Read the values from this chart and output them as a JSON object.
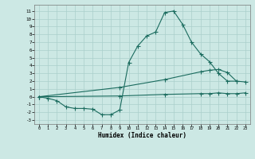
{
  "xlabel": "Humidex (Indice chaleur)",
  "xlim": [
    -0.5,
    23.5
  ],
  "ylim": [
    -3.5,
    11.8
  ],
  "xticks": [
    0,
    1,
    2,
    3,
    4,
    5,
    6,
    7,
    8,
    9,
    10,
    11,
    12,
    13,
    14,
    15,
    16,
    17,
    18,
    19,
    20,
    21,
    22,
    23
  ],
  "yticks": [
    -3,
    -2,
    -1,
    0,
    1,
    2,
    3,
    4,
    5,
    6,
    7,
    8,
    9,
    10,
    11
  ],
  "bg_color": "#cce8e4",
  "grid_color": "#aacfcb",
  "line_color": "#1a6b5e",
  "line1_x": [
    0,
    1,
    2,
    3,
    4,
    5,
    6,
    7,
    8,
    9,
    10,
    11,
    12,
    13,
    14,
    15,
    16,
    17,
    18,
    19,
    20,
    21,
    22
  ],
  "line1_y": [
    0.0,
    -0.2,
    -0.5,
    -1.3,
    -1.5,
    -1.5,
    -1.6,
    -2.3,
    -2.3,
    -1.7,
    4.4,
    6.5,
    7.8,
    8.3,
    10.8,
    11.0,
    9.3,
    7.0,
    5.5,
    4.5,
    3.0,
    2.0,
    2.0
  ],
  "line2_x": [
    0,
    9,
    14,
    18,
    19,
    20,
    21,
    22,
    23
  ],
  "line2_y": [
    0.0,
    1.2,
    2.2,
    3.2,
    3.4,
    3.5,
    3.1,
    2.0,
    1.9
  ],
  "line3_x": [
    0,
    9,
    14,
    18,
    19,
    20,
    21,
    22,
    23
  ],
  "line3_y": [
    0.0,
    0.1,
    0.3,
    0.4,
    0.4,
    0.5,
    0.4,
    0.4,
    0.5
  ]
}
